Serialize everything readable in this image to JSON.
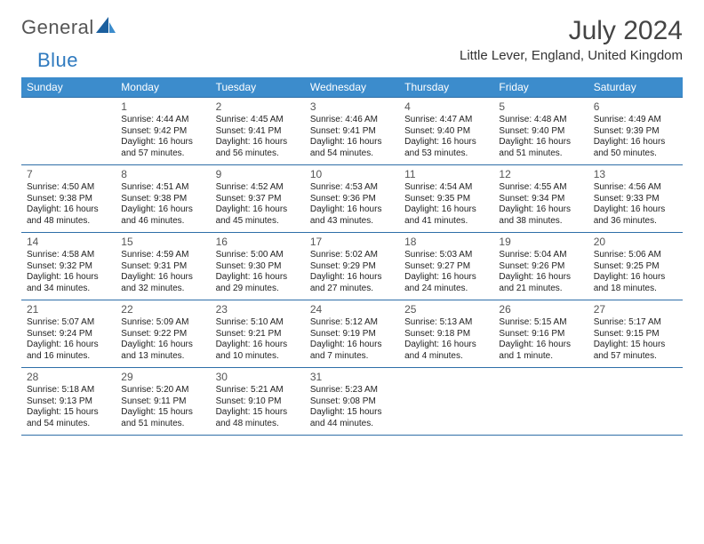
{
  "brand": {
    "word1": "General",
    "word2": "Blue"
  },
  "title": "July 2024",
  "location": "Little Lever, England, United Kingdom",
  "colors": {
    "header_bg": "#3c8ccc",
    "header_text": "#ffffff",
    "rule": "#2f6fa8",
    "brand_gray": "#555555",
    "brand_blue": "#2f7abf",
    "text": "#222222",
    "background": "#ffffff"
  },
  "typography": {
    "month_title_pt": 30,
    "location_pt": 15,
    "dayheader_pt": 12,
    "daynum_pt": 12,
    "cell_pt": 10,
    "logo_pt": 22
  },
  "day_headers": [
    "Sunday",
    "Monday",
    "Tuesday",
    "Wednesday",
    "Thursday",
    "Friday",
    "Saturday"
  ],
  "weeks": [
    [
      {
        "n": "",
        "lines": []
      },
      {
        "n": "1",
        "lines": [
          "Sunrise: 4:44 AM",
          "Sunset: 9:42 PM",
          "Daylight: 16 hours",
          "and 57 minutes."
        ]
      },
      {
        "n": "2",
        "lines": [
          "Sunrise: 4:45 AM",
          "Sunset: 9:41 PM",
          "Daylight: 16 hours",
          "and 56 minutes."
        ]
      },
      {
        "n": "3",
        "lines": [
          "Sunrise: 4:46 AM",
          "Sunset: 9:41 PM",
          "Daylight: 16 hours",
          "and 54 minutes."
        ]
      },
      {
        "n": "4",
        "lines": [
          "Sunrise: 4:47 AM",
          "Sunset: 9:40 PM",
          "Daylight: 16 hours",
          "and 53 minutes."
        ]
      },
      {
        "n": "5",
        "lines": [
          "Sunrise: 4:48 AM",
          "Sunset: 9:40 PM",
          "Daylight: 16 hours",
          "and 51 minutes."
        ]
      },
      {
        "n": "6",
        "lines": [
          "Sunrise: 4:49 AM",
          "Sunset: 9:39 PM",
          "Daylight: 16 hours",
          "and 50 minutes."
        ]
      }
    ],
    [
      {
        "n": "7",
        "lines": [
          "Sunrise: 4:50 AM",
          "Sunset: 9:38 PM",
          "Daylight: 16 hours",
          "and 48 minutes."
        ]
      },
      {
        "n": "8",
        "lines": [
          "Sunrise: 4:51 AM",
          "Sunset: 9:38 PM",
          "Daylight: 16 hours",
          "and 46 minutes."
        ]
      },
      {
        "n": "9",
        "lines": [
          "Sunrise: 4:52 AM",
          "Sunset: 9:37 PM",
          "Daylight: 16 hours",
          "and 45 minutes."
        ]
      },
      {
        "n": "10",
        "lines": [
          "Sunrise: 4:53 AM",
          "Sunset: 9:36 PM",
          "Daylight: 16 hours",
          "and 43 minutes."
        ]
      },
      {
        "n": "11",
        "lines": [
          "Sunrise: 4:54 AM",
          "Sunset: 9:35 PM",
          "Daylight: 16 hours",
          "and 41 minutes."
        ]
      },
      {
        "n": "12",
        "lines": [
          "Sunrise: 4:55 AM",
          "Sunset: 9:34 PM",
          "Daylight: 16 hours",
          "and 38 minutes."
        ]
      },
      {
        "n": "13",
        "lines": [
          "Sunrise: 4:56 AM",
          "Sunset: 9:33 PM",
          "Daylight: 16 hours",
          "and 36 minutes."
        ]
      }
    ],
    [
      {
        "n": "14",
        "lines": [
          "Sunrise: 4:58 AM",
          "Sunset: 9:32 PM",
          "Daylight: 16 hours",
          "and 34 minutes."
        ]
      },
      {
        "n": "15",
        "lines": [
          "Sunrise: 4:59 AM",
          "Sunset: 9:31 PM",
          "Daylight: 16 hours",
          "and 32 minutes."
        ]
      },
      {
        "n": "16",
        "lines": [
          "Sunrise: 5:00 AM",
          "Sunset: 9:30 PM",
          "Daylight: 16 hours",
          "and 29 minutes."
        ]
      },
      {
        "n": "17",
        "lines": [
          "Sunrise: 5:02 AM",
          "Sunset: 9:29 PM",
          "Daylight: 16 hours",
          "and 27 minutes."
        ]
      },
      {
        "n": "18",
        "lines": [
          "Sunrise: 5:03 AM",
          "Sunset: 9:27 PM",
          "Daylight: 16 hours",
          "and 24 minutes."
        ]
      },
      {
        "n": "19",
        "lines": [
          "Sunrise: 5:04 AM",
          "Sunset: 9:26 PM",
          "Daylight: 16 hours",
          "and 21 minutes."
        ]
      },
      {
        "n": "20",
        "lines": [
          "Sunrise: 5:06 AM",
          "Sunset: 9:25 PM",
          "Daylight: 16 hours",
          "and 18 minutes."
        ]
      }
    ],
    [
      {
        "n": "21",
        "lines": [
          "Sunrise: 5:07 AM",
          "Sunset: 9:24 PM",
          "Daylight: 16 hours",
          "and 16 minutes."
        ]
      },
      {
        "n": "22",
        "lines": [
          "Sunrise: 5:09 AM",
          "Sunset: 9:22 PM",
          "Daylight: 16 hours",
          "and 13 minutes."
        ]
      },
      {
        "n": "23",
        "lines": [
          "Sunrise: 5:10 AM",
          "Sunset: 9:21 PM",
          "Daylight: 16 hours",
          "and 10 minutes."
        ]
      },
      {
        "n": "24",
        "lines": [
          "Sunrise: 5:12 AM",
          "Sunset: 9:19 PM",
          "Daylight: 16 hours",
          "and 7 minutes."
        ]
      },
      {
        "n": "25",
        "lines": [
          "Sunrise: 5:13 AM",
          "Sunset: 9:18 PM",
          "Daylight: 16 hours",
          "and 4 minutes."
        ]
      },
      {
        "n": "26",
        "lines": [
          "Sunrise: 5:15 AM",
          "Sunset: 9:16 PM",
          "Daylight: 16 hours",
          "and 1 minute."
        ]
      },
      {
        "n": "27",
        "lines": [
          "Sunrise: 5:17 AM",
          "Sunset: 9:15 PM",
          "Daylight: 15 hours",
          "and 57 minutes."
        ]
      }
    ],
    [
      {
        "n": "28",
        "lines": [
          "Sunrise: 5:18 AM",
          "Sunset: 9:13 PM",
          "Daylight: 15 hours",
          "and 54 minutes."
        ]
      },
      {
        "n": "29",
        "lines": [
          "Sunrise: 5:20 AM",
          "Sunset: 9:11 PM",
          "Daylight: 15 hours",
          "and 51 minutes."
        ]
      },
      {
        "n": "30",
        "lines": [
          "Sunrise: 5:21 AM",
          "Sunset: 9:10 PM",
          "Daylight: 15 hours",
          "and 48 minutes."
        ]
      },
      {
        "n": "31",
        "lines": [
          "Sunrise: 5:23 AM",
          "Sunset: 9:08 PM",
          "Daylight: 15 hours",
          "and 44 minutes."
        ]
      },
      {
        "n": "",
        "lines": []
      },
      {
        "n": "",
        "lines": []
      },
      {
        "n": "",
        "lines": []
      }
    ]
  ]
}
